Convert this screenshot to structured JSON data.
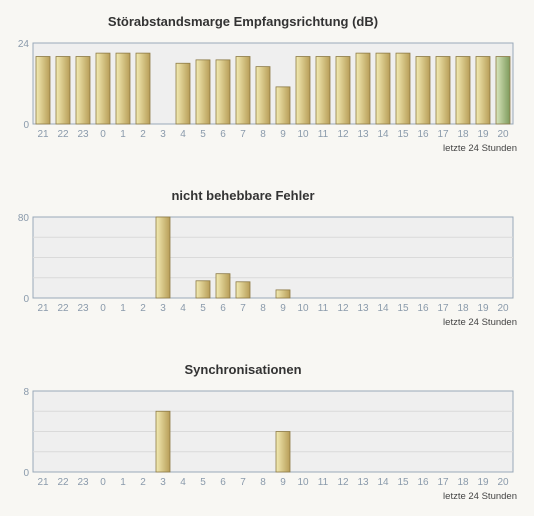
{
  "chart_data": [
    {
      "type": "bar",
      "title": "Störabstandsmarge Empfangsrichtung (dB)",
      "categories": [
        "21",
        "22",
        "23",
        "0",
        "1",
        "2",
        "3",
        "4",
        "5",
        "6",
        "7",
        "8",
        "9",
        "10",
        "11",
        "12",
        "13",
        "14",
        "15",
        "16",
        "17",
        "18",
        "19",
        "20"
      ],
      "values": [
        20,
        20,
        20,
        21,
        21,
        21,
        0,
        18,
        19,
        19,
        20,
        17,
        11,
        20,
        20,
        20,
        21,
        21,
        21,
        20,
        20,
        20,
        20,
        20
      ],
      "highlight_last": true,
      "ylim": [
        0,
        24
      ],
      "yticks": [
        "0",
        "24"
      ],
      "xlabel": "letzte 24 Stunden",
      "grid": false
    },
    {
      "type": "bar",
      "title": "nicht behebbare Fehler",
      "categories": [
        "21",
        "22",
        "23",
        "0",
        "1",
        "2",
        "3",
        "4",
        "5",
        "6",
        "7",
        "8",
        "9",
        "10",
        "11",
        "12",
        "13",
        "14",
        "15",
        "16",
        "17",
        "18",
        "19",
        "20"
      ],
      "values": [
        0,
        0,
        0,
        0,
        0,
        0,
        80,
        0,
        17,
        24,
        16,
        0,
        8,
        0,
        0,
        0,
        0,
        0,
        0,
        0,
        0,
        0,
        0,
        0
      ],
      "highlight_last": false,
      "ylim": [
        0,
        80
      ],
      "yticks": [
        "0",
        "80"
      ],
      "xlabel": "letzte 24 Stunden",
      "grid": true
    },
    {
      "type": "bar",
      "title": "Synchronisationen",
      "categories": [
        "21",
        "22",
        "23",
        "0",
        "1",
        "2",
        "3",
        "4",
        "5",
        "6",
        "7",
        "8",
        "9",
        "10",
        "11",
        "12",
        "13",
        "14",
        "15",
        "16",
        "17",
        "18",
        "19",
        "20"
      ],
      "values": [
        0,
        0,
        0,
        0,
        0,
        0,
        6,
        0,
        0,
        0,
        0,
        0,
        4,
        0,
        0,
        0,
        0,
        0,
        0,
        0,
        0,
        0,
        0,
        0
      ],
      "highlight_last": false,
      "ylim": [
        0,
        8
      ],
      "yticks": [
        "0",
        "8"
      ],
      "xlabel": "letzte 24 Stunden",
      "grid": true
    }
  ],
  "colors": {
    "bar_light": "#f3ebb3",
    "bar_dark": "#b79d57",
    "bar_edge": "#8c7a45",
    "bar_last_light": "#d9e6bd",
    "bar_last_dark": "#7d9a5c",
    "plot_bg": "#efefef",
    "grid": "#dadada",
    "axis": "#9aa9b8",
    "tick_text": "#8a9aab",
    "title_text": "#333333"
  }
}
